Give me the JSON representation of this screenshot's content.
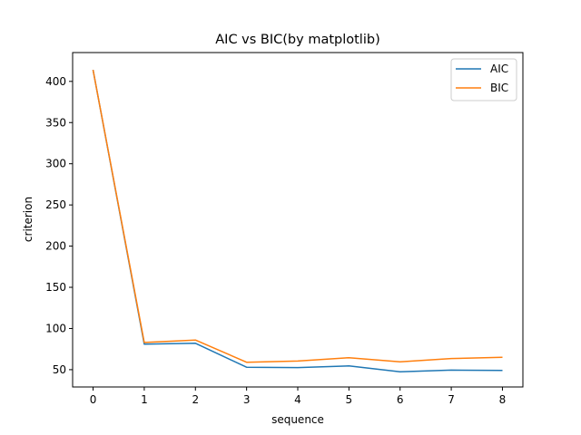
{
  "chart_data": {
    "type": "line",
    "title": "AIC vs BIC(by matplotlib)",
    "xlabel": "sequence",
    "ylabel": "criterion",
    "x": [
      0,
      1,
      2,
      3,
      4,
      5,
      6,
      7,
      8
    ],
    "xticks": [
      "0",
      "1",
      "2",
      "3",
      "4",
      "5",
      "6",
      "7",
      "8"
    ],
    "yticks": [
      "50",
      "100",
      "150",
      "200",
      "250",
      "300",
      "350",
      "400"
    ],
    "xlim": [
      -0.4,
      8.4
    ],
    "ylim": [
      29,
      435
    ],
    "grid": false,
    "legend_position": "top-right",
    "series": [
      {
        "name": "AIC",
        "color": "#1f77b4",
        "values": [
          414,
          81,
          82,
          53,
          52.5,
          54.5,
          47.5,
          49.5,
          49
        ]
      },
      {
        "name": "BIC",
        "color": "#ff7f0e",
        "values": [
          414,
          83,
          86,
          59,
          60.5,
          64.5,
          59.5,
          63.5,
          65
        ]
      }
    ]
  }
}
